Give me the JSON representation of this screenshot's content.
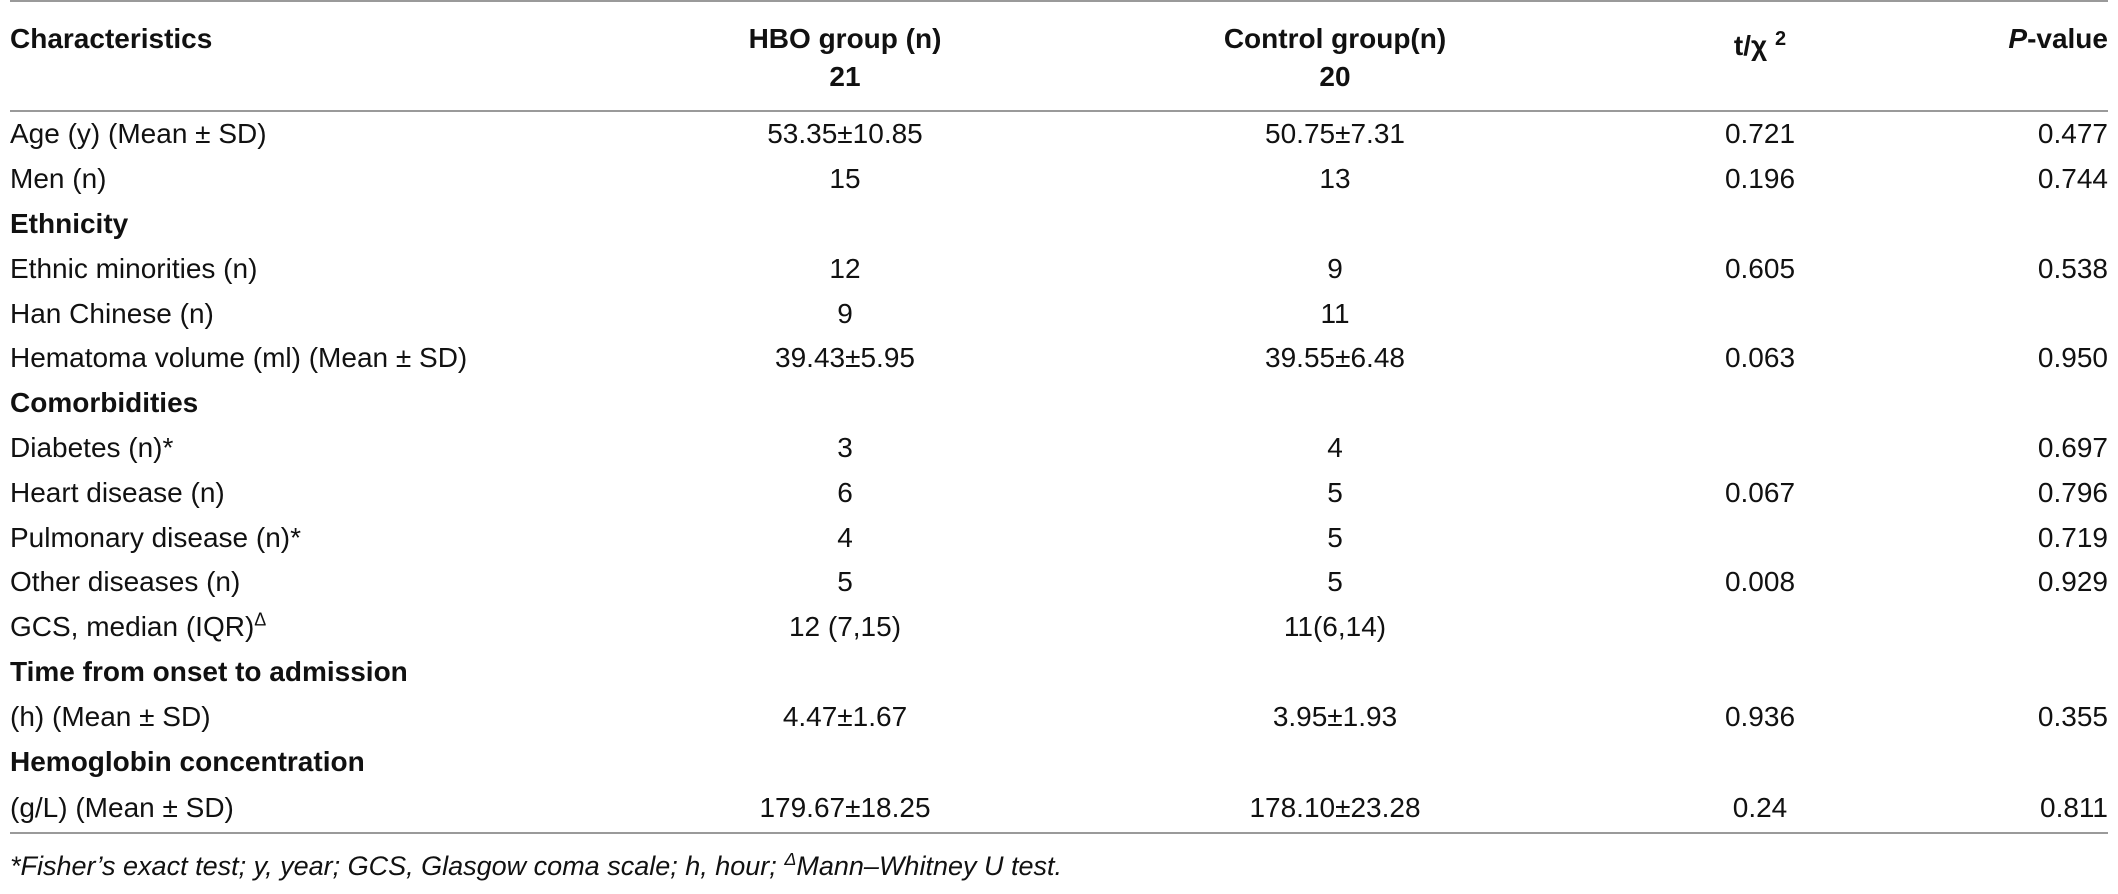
{
  "table": {
    "header": {
      "characteristics": "Characteristics",
      "hbo_label": "HBO group (n)",
      "hbo_n": "21",
      "control_label": "Control group(n)",
      "control_n": "20",
      "stat_label": "t/χ",
      "stat_sup": "2",
      "p_italic": "P",
      "p_rest": "-value"
    },
    "rows": [
      {
        "label": "Age (y) (Mean ± SD)",
        "hbo": "53.35±10.85",
        "control": "50.75±7.31",
        "stat": "0.721",
        "p": "0.477"
      },
      {
        "label": "Men (n)",
        "hbo": "15",
        "control": "13",
        "stat": "0.196",
        "p": "0.744"
      },
      {
        "label": "Ethnicity",
        "hbo": "",
        "control": "",
        "stat": "",
        "p": ""
      },
      {
        "label": "Ethnic minorities (n)",
        "hbo": "12",
        "control": "9",
        "stat": "0.605",
        "p": "0.538"
      },
      {
        "label": "Han Chinese (n)",
        "hbo": "9",
        "control": "11",
        "stat": "",
        "p": ""
      },
      {
        "label": "Hematoma volume (ml) (Mean ± SD)",
        "hbo": "39.43±5.95",
        "control": "39.55±6.48",
        "stat": "0.063",
        "p": "0.950"
      },
      {
        "label": "Comorbidities",
        "hbo": "",
        "control": "",
        "stat": "",
        "p": ""
      },
      {
        "label": "Diabetes (n)*",
        "hbo": "3",
        "control": "4",
        "stat": "",
        "p": "0.697"
      },
      {
        "label": "Heart disease (n)",
        "hbo": "6",
        "control": "5",
        "stat": "0.067",
        "p": "0.796"
      },
      {
        "label": "Pulmonary disease (n)*",
        "hbo": "4",
        "control": "5",
        "stat": "",
        "p": "0.719"
      },
      {
        "label": "Other diseases (n)",
        "hbo": "5",
        "control": "5",
        "stat": "0.008",
        "p": "0.929"
      },
      {
        "label": "GCS, median (IQR)",
        "label_sup": "Δ",
        "hbo": "12 (7,15)",
        "control": "11(6,14)",
        "stat": "",
        "p": ""
      },
      {
        "label": "Time from onset to admission",
        "hbo": "",
        "control": "",
        "stat": "",
        "p": ""
      },
      {
        "label": "(h) (Mean ± SD)",
        "hbo": "4.47±1.67",
        "control": "3.95±1.93",
        "stat": "0.936",
        "p": "0.355"
      },
      {
        "label": "Hemoglobin concentration",
        "hbo": "",
        "control": "",
        "stat": "",
        "p": ""
      },
      {
        "label": "(g/L) (Mean ± SD)",
        "hbo": "179.67±18.25",
        "control": "178.10±23.28",
        "stat": "0.24",
        "p": "0.811"
      }
    ],
    "footnote": {
      "text_before": "*Fisher’s exact test; y, year; GCS, Glasgow coma scale; h, hour; ",
      "sup": "Δ",
      "text_after": "Mann–Whitney U test."
    }
  }
}
